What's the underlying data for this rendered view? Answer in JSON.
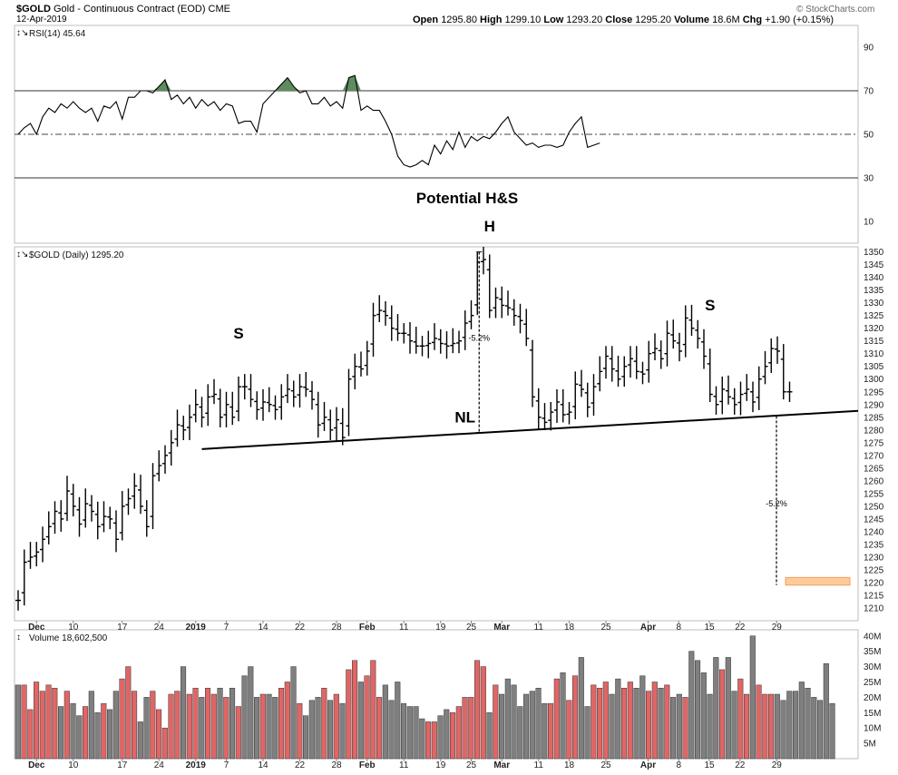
{
  "header": {
    "symbol": "$GOLD",
    "name": "Gold - Continuous Contract (EOD)",
    "exchange": "CME",
    "date": "12-Apr-2019",
    "open_label": "Open",
    "open": "1295.80",
    "high_label": "High",
    "high": "1299.10",
    "low_label": "Low",
    "low": "1293.20",
    "close_label": "Close",
    "close": "1295.20",
    "volume_label": "Volume",
    "volume": "18.6M",
    "chg_label": "Chg",
    "chg": "+1.90 (+0.15%)",
    "watermark": "© StockCharts.com"
  },
  "chart_data": [
    {
      "type": "line",
      "panel": "rsi",
      "label": "RSI(14) 45.64",
      "ylim": [
        0,
        100
      ],
      "yticks": [
        10,
        30,
        50,
        70,
        90
      ],
      "reference_lines": [
        30,
        50,
        70
      ],
      "values": [
        50,
        53,
        55,
        50,
        58,
        62,
        60,
        64,
        62,
        65,
        62,
        60,
        62,
        56,
        63,
        62,
        65,
        57,
        67,
        67,
        70,
        70,
        69,
        72,
        75,
        66,
        68,
        64,
        67,
        62,
        66,
        63,
        65,
        61,
        64,
        63,
        55,
        56,
        56,
        51,
        64,
        67,
        70,
        73,
        76,
        72,
        69,
        70,
        64,
        64,
        67,
        63,
        65,
        62,
        76,
        77,
        61,
        63,
        61,
        61,
        56,
        50,
        40,
        36,
        35,
        36,
        38,
        36,
        45,
        41,
        47,
        43,
        51,
        44,
        49,
        47,
        49,
        48,
        51,
        55,
        58,
        51,
        48,
        45,
        46,
        44,
        45,
        45,
        44,
        45,
        51,
        55,
        58,
        44,
        45,
        46
      ],
      "overbought_color": "#5e8c5e"
    },
    {
      "type": "ohlc",
      "panel": "price",
      "label": "$GOLD (Daily) 1295.20",
      "ylim": [
        1205,
        1352
      ],
      "yticks": [
        1210,
        1215,
        1220,
        1225,
        1230,
        1235,
        1240,
        1245,
        1250,
        1255,
        1260,
        1265,
        1270,
        1275,
        1280,
        1285,
        1290,
        1295,
        1300,
        1305,
        1310,
        1315,
        1320,
        1325,
        1330,
        1335,
        1340,
        1345,
        1350
      ],
      "values": [
        1213,
        1228,
        1230,
        1232,
        1237,
        1242,
        1248,
        1245,
        1256,
        1250,
        1243,
        1251,
        1248,
        1242,
        1246,
        1245,
        1237,
        1250,
        1253,
        1258,
        1250,
        1242,
        1262,
        1266,
        1270,
        1275,
        1282,
        1280,
        1285,
        1290,
        1285,
        1293,
        1294,
        1285,
        1290,
        1285,
        1297,
        1297,
        1292,
        1288,
        1291,
        1290,
        1288,
        1293,
        1296,
        1293,
        1297,
        1296,
        1292,
        1282,
        1285,
        1280,
        1284,
        1277,
        1300,
        1305,
        1304,
        1311,
        1325,
        1327,
        1325,
        1320,
        1318,
        1318,
        1315,
        1313,
        1313,
        1314,
        1316,
        1314,
        1313,
        1314,
        1315,
        1322,
        1325,
        1346,
        1347,
        1327,
        1332,
        1329,
        1328,
        1325,
        1323,
        1316,
        1293,
        1285,
        1283,
        1287,
        1291,
        1286,
        1287,
        1298,
        1296,
        1289,
        1297,
        1303,
        1309,
        1304,
        1300,
        1305,
        1308,
        1303,
        1302,
        1310,
        1312,
        1308,
        1318,
        1315,
        1311,
        1324,
        1320,
        1316,
        1309,
        1294,
        1290,
        1296,
        1293,
        1290,
        1294,
        1296,
        1291,
        1300,
        1305,
        1312,
        1311,
        1295,
        1295
      ],
      "neckline": {
        "from_index": 30,
        "to_index": 150,
        "y_start": 1272.5,
        "y_end": 1287.5,
        "label": "NL"
      },
      "annotations": [
        {
          "text": "S",
          "index": 36,
          "y": 1316
        },
        {
          "text": "H",
          "index": 77,
          "y": 1358
        },
        {
          "text": "S",
          "index": 113,
          "y": 1327
        },
        {
          "text": "NL",
          "index": 73,
          "y": 1283
        }
      ],
      "measure_down_pct": "-5.2%",
      "measure_up_pct": "-5.2%",
      "target_zone": {
        "from_index": 128,
        "to_index": 137,
        "y_low": 1219,
        "y_high": 1222,
        "color": "#ffcc99"
      },
      "annotation_title": "Potential H&S"
    },
    {
      "type": "bar",
      "panel": "volume",
      "label": "Volume 18,602,500",
      "ylim": [
        0,
        42
      ],
      "yticks_labels": [
        "5M",
        "10M",
        "15M",
        "20M",
        "25M",
        "30M",
        "35M",
        "40M"
      ],
      "yticks": [
        5,
        10,
        15,
        20,
        25,
        30,
        35,
        40
      ],
      "values": [
        24,
        24,
        16,
        25,
        22,
        24,
        23,
        17,
        22,
        18,
        14,
        17,
        22,
        15,
        18,
        16,
        22,
        26,
        30,
        22,
        12,
        20,
        22,
        16,
        10,
        21,
        22,
        30,
        21,
        23,
        20,
        23,
        21,
        23,
        20,
        23,
        17,
        27,
        30,
        20,
        21,
        21,
        20,
        23,
        25,
        30,
        18,
        14,
        19,
        20,
        23,
        19,
        21,
        18,
        29,
        32,
        25,
        27,
        32,
        20,
        24,
        19,
        25,
        18,
        17,
        17,
        13,
        12,
        12,
        14,
        16,
        15,
        17,
        20,
        20,
        32,
        30,
        15,
        24,
        21,
        26,
        24,
        17,
        21,
        22,
        23,
        18,
        18,
        26,
        28,
        19,
        27,
        33,
        17,
        24,
        23,
        25,
        21,
        26,
        23,
        25,
        23,
        27,
        22,
        25,
        23,
        24,
        20,
        21,
        20,
        35,
        32,
        28,
        21,
        33,
        29,
        33,
        22,
        26,
        21,
        40,
        24,
        21,
        21,
        21,
        19,
        22,
        22,
        25,
        23,
        20,
        19,
        31,
        18
      ],
      "colors": {
        "up": "#e06666",
        "down": "#7f7f7f"
      }
    }
  ],
  "x_axis": {
    "labels": [
      {
        "text": "Dec",
        "bold": true,
        "index": 3
      },
      {
        "text": "10",
        "bold": false,
        "index": 9
      },
      {
        "text": "17",
        "bold": false,
        "index": 17
      },
      {
        "text": "24",
        "bold": false,
        "index": 23
      },
      {
        "text": "2019",
        "bold": true,
        "index": 29
      },
      {
        "text": "7",
        "bold": false,
        "index": 34
      },
      {
        "text": "14",
        "bold": false,
        "index": 40
      },
      {
        "text": "22",
        "bold": false,
        "index": 46
      },
      {
        "text": "28",
        "bold": false,
        "index": 52
      },
      {
        "text": "Feb",
        "bold": true,
        "index": 57
      },
      {
        "text": "11",
        "bold": false,
        "index": 63
      },
      {
        "text": "19",
        "bold": false,
        "index": 69
      },
      {
        "text": "25",
        "bold": false,
        "index": 74
      },
      {
        "text": "Mar",
        "bold": true,
        "index": 79
      },
      {
        "text": "11",
        "bold": false,
        "index": 85
      },
      {
        "text": "18",
        "bold": false,
        "index": 90
      },
      {
        "text": "25",
        "bold": false,
        "index": 96
      },
      {
        "text": "Apr",
        "bold": true,
        "index": 102
      },
      {
        "text": "8",
        "bold": false,
        "index": 107
      },
      {
        "text": "15",
        "bold": false,
        "index": 112
      },
      {
        "text": "22",
        "bold": false,
        "index": 117
      },
      {
        "text": "29",
        "bold": false,
        "index": 123
      }
    ]
  }
}
